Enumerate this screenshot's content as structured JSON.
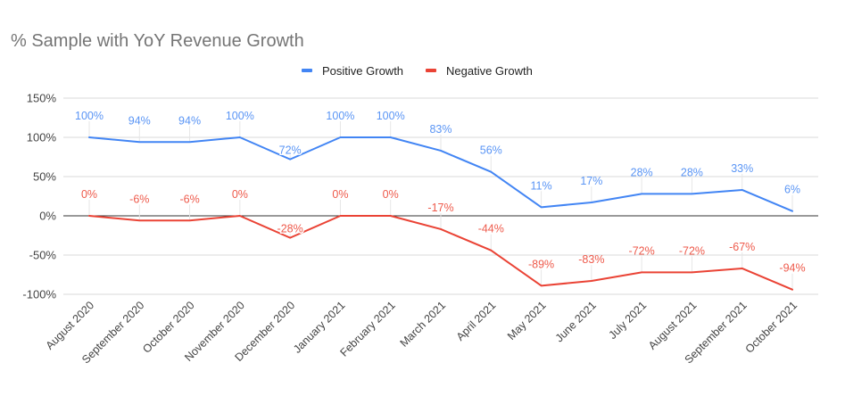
{
  "chart_data": {
    "type": "line",
    "title": "% Sample with YoY Revenue Growth",
    "xlabel": "",
    "ylabel": "",
    "legend_position": "top-center",
    "grid": true,
    "ylim": [
      -100,
      150
    ],
    "yticks": [
      150,
      100,
      50,
      0,
      -50,
      -100
    ],
    "ytick_labels": [
      "150%",
      "100%",
      "50%",
      "0%",
      "-50%",
      "-100%"
    ],
    "categories": [
      "August 2020",
      "September 2020",
      "October 2020",
      "November 2020",
      "December 2020",
      "January 2021",
      "February 2021",
      "March 2021",
      "April 2021",
      "May 2021",
      "June 2021",
      "July 2021",
      "August 2021",
      "September 2021",
      "October 2021"
    ],
    "series": [
      {
        "name": "Positive Growth",
        "color": "#4285f4",
        "values": [
          100,
          94,
          94,
          100,
          72,
          100,
          100,
          83,
          56,
          11,
          17,
          28,
          28,
          33,
          6
        ],
        "labels": [
          "100%",
          "94%",
          "94%",
          "100%",
          "72%",
          "100%",
          "100%",
          "83%",
          "56%",
          "11%",
          "17%",
          "28%",
          "28%",
          "33%",
          "6%"
        ]
      },
      {
        "name": "Negative Growth",
        "color": "#ea4335",
        "values": [
          0,
          -6,
          -6,
          0,
          -28,
          0,
          0,
          -17,
          -44,
          -89,
          -83,
          -72,
          -72,
          -67,
          -94
        ],
        "labels": [
          "0%",
          "-6%",
          "-6%",
          "0%",
          "-28%",
          "0%",
          "0%",
          "-17%",
          "-44%",
          "-89%",
          "-83%",
          "-72%",
          "-72%",
          "-67%",
          "-94%"
        ]
      }
    ]
  }
}
